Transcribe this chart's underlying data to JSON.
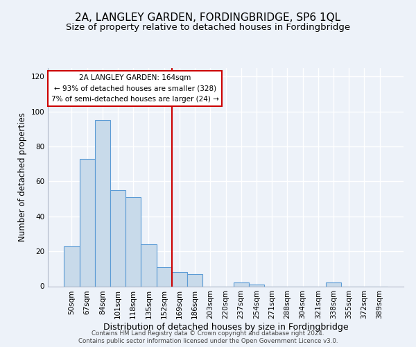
{
  "title": "2A, LANGLEY GARDEN, FORDINGBRIDGE, SP6 1QL",
  "subtitle": "Size of property relative to detached houses in Fordingbridge",
  "xlabel": "Distribution of detached houses by size in Fordingbridge",
  "ylabel": "Number of detached properties",
  "bar_labels": [
    "50sqm",
    "67sqm",
    "84sqm",
    "101sqm",
    "118sqm",
    "135sqm",
    "152sqm",
    "169sqm",
    "186sqm",
    "203sqm",
    "220sqm",
    "237sqm",
    "254sqm",
    "271sqm",
    "288sqm",
    "304sqm",
    "321sqm",
    "338sqm",
    "355sqm",
    "372sqm",
    "389sqm"
  ],
  "bar_values": [
    23,
    73,
    95,
    55,
    51,
    24,
    11,
    8,
    7,
    0,
    0,
    2,
    1,
    0,
    0,
    0,
    0,
    2,
    0,
    0,
    0
  ],
  "bar_color": "#c8daea",
  "bar_edge_color": "#5b9bd5",
  "vline_x_idx": 7,
  "vline_color": "#cc0000",
  "annotation_title": "2A LANGLEY GARDEN: 164sqm",
  "annotation_line1": "← 93% of detached houses are smaller (328)",
  "annotation_line2": "7% of semi-detached houses are larger (24) →",
  "annotation_box_color": "#ffffff",
  "annotation_box_edge": "#cc0000",
  "ylim": [
    0,
    125
  ],
  "yticks": [
    0,
    20,
    40,
    60,
    80,
    100,
    120
  ],
  "footer1": "Contains HM Land Registry data © Crown copyright and database right 2024.",
  "footer2": "Contains public sector information licensed under the Open Government Licence v3.0.",
  "background_color": "#edf2f9",
  "grid_color": "#ffffff",
  "title_fontsize": 11,
  "subtitle_fontsize": 9.5,
  "tick_fontsize": 7.5,
  "ylabel_fontsize": 8.5,
  "xlabel_fontsize": 9
}
